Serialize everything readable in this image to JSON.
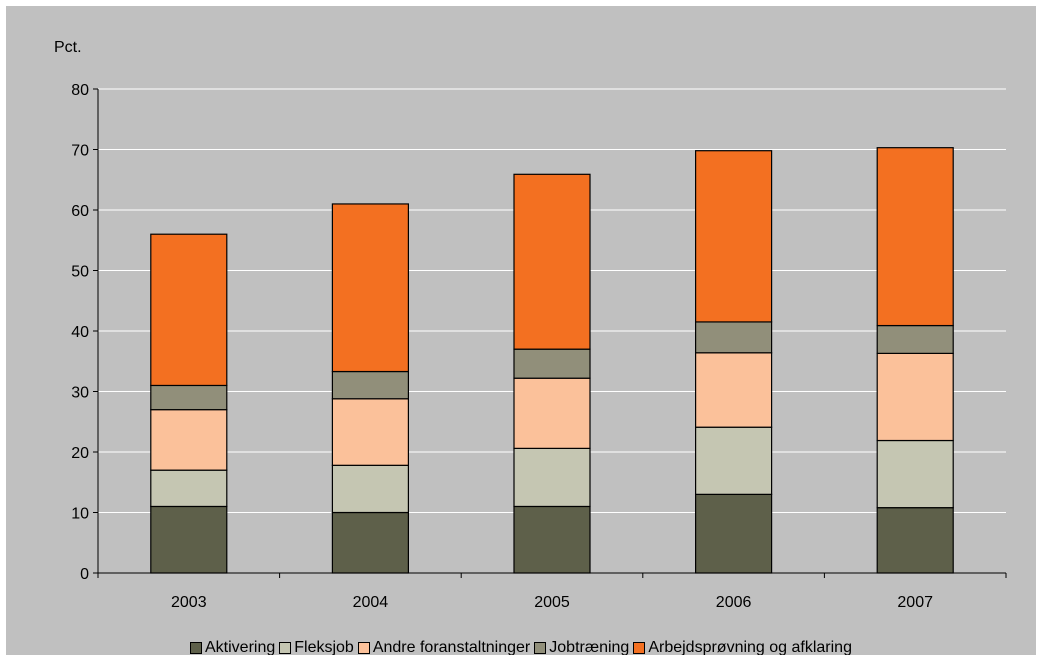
{
  "chart_data": {
    "type": "bar",
    "stacked": true,
    "ylabel": "Pct.",
    "xlabel": "",
    "ylim": [
      0,
      80
    ],
    "yticks": [
      0,
      10,
      20,
      30,
      40,
      50,
      60,
      70,
      80
    ],
    "categories": [
      "2003",
      "2004",
      "2005",
      "2006",
      "2007"
    ],
    "series": [
      {
        "name": "Aktivering",
        "color": "#5e604a",
        "values": [
          11.0,
          10.0,
          11.0,
          13.0,
          10.8
        ]
      },
      {
        "name": "Fleksjob",
        "color": "#c5c6b2",
        "values": [
          6.0,
          7.8,
          9.6,
          11.1,
          11.1
        ]
      },
      {
        "name": "Andre foranstaltninger",
        "color": "#fbc19a",
        "values": [
          10.0,
          11.0,
          11.6,
          12.3,
          14.4
        ]
      },
      {
        "name": "Jobtræning",
        "color": "#918f7a",
        "values": [
          4.0,
          4.5,
          4.8,
          5.1,
          4.6
        ]
      },
      {
        "name": "Arbejdsprøvning og afklaring",
        "color": "#f37021",
        "values": [
          25.0,
          27.7,
          28.9,
          28.3,
          29.4
        ]
      }
    ],
    "grid": true,
    "legend_position": "bottom"
  }
}
